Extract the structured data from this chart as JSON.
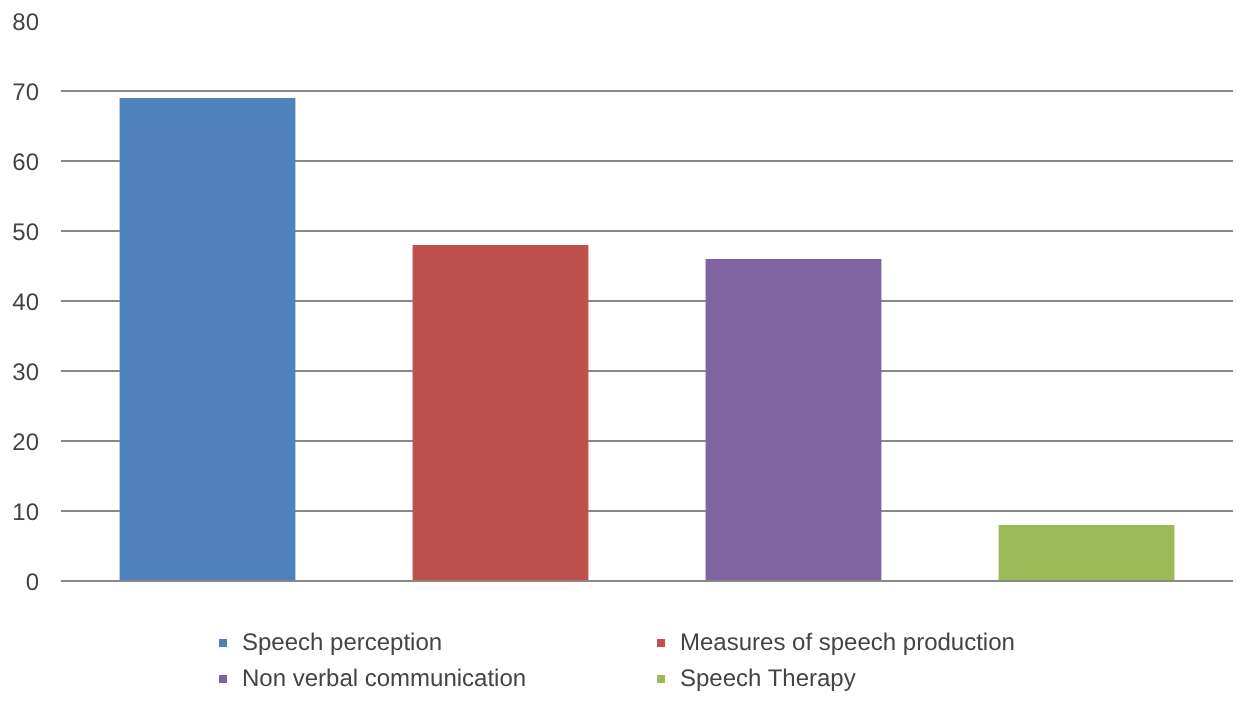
{
  "chart_data": {
    "type": "bar",
    "categories": [
      null,
      null,
      null,
      null
    ],
    "series": [
      {
        "name": "Speech perception",
        "color": "#4f81bd",
        "values": [
          69,
          null,
          null,
          null
        ]
      },
      {
        "name": "Measures of speech production",
        "color": "#c0504d",
        "values": [
          null,
          48,
          null,
          null
        ]
      },
      {
        "name": "Non verbal communication",
        "color": "#8064a2",
        "values": [
          null,
          null,
          46,
          null
        ]
      },
      {
        "name": "Speech Therapy",
        "color": "#9bbb59",
        "values": [
          null,
          null,
          null,
          8
        ]
      }
    ],
    "ylim": [
      0,
      80
    ],
    "yticks": [
      0,
      10,
      20,
      30,
      40,
      50,
      60,
      70,
      80
    ],
    "grid": "y",
    "legend": "bottom"
  }
}
